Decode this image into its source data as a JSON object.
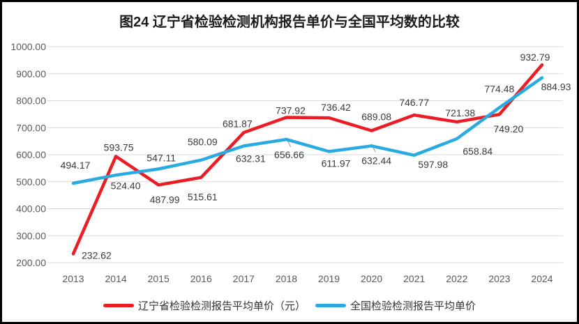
{
  "title": "图24 辽宁省检验检测机构报告单价与全国平均数的比较",
  "chart_data": {
    "type": "line",
    "title": "图24 辽宁省检验检测机构报告单价与全国平均数的比较",
    "categories": [
      "2013",
      "2014",
      "2015",
      "2016",
      "2017",
      "2018",
      "2019",
      "2020",
      "2021",
      "2022",
      "2023",
      "2024"
    ],
    "series": [
      {
        "name": "辽宁省检验检测报告平均单价（元）",
        "color": "#EC1C24",
        "values": [
          232.62,
          593.75,
          487.99,
          515.61,
          681.87,
          737.92,
          736.42,
          689.08,
          746.77,
          721.38,
          749.2,
          932.79
        ]
      },
      {
        "name": "全国检验检测报告平均单价",
        "color": "#29ABE2",
        "values": [
          494.17,
          524.4,
          547.11,
          580.09,
          632.31,
          656.66,
          611.97,
          632.44,
          597.98,
          658.84,
          774.48,
          884.93
        ]
      }
    ],
    "ylim": [
      200,
      1000
    ],
    "ytick_step": 100,
    "ytick_labels": [
      "200.00",
      "300.00",
      "400.00",
      "500.00",
      "600.00",
      "700.00",
      "800.00",
      "900.00",
      "1000.00"
    ],
    "xlabel": "",
    "ylabel": "",
    "grid": "horizontal-only",
    "legend_position": "bottom",
    "data_labels": "all points, 2 decimals",
    "colors": {
      "gridline": "#D9D9D9",
      "axis_text": "#595959",
      "data_label_text": "#3a3a3a",
      "leader_line": "#A6A6A6",
      "title_text": "#1c1c1c",
      "background": "#ffffff",
      "border": "#000000"
    }
  }
}
